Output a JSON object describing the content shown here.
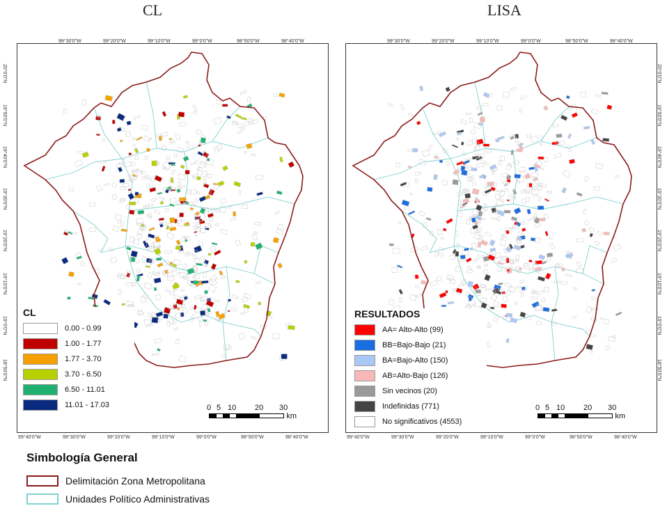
{
  "maps": {
    "cl": {
      "title": "CL",
      "legend_title": "CL",
      "legend": [
        {
          "label": "0.00 - 0.99",
          "color": "#ffffff"
        },
        {
          "label": "1.00 - 1.77",
          "color": "#c00000"
        },
        {
          "label": "1.77 - 3.70",
          "color": "#f5a000"
        },
        {
          "label": "3.70 - 6.50",
          "color": "#b8d000"
        },
        {
          "label": "6.50 - 11.01",
          "color": "#20b070"
        },
        {
          "label": "11.01 - 17.03",
          "color": "#0a2a80"
        }
      ]
    },
    "lisa": {
      "title": "LISA",
      "legend_title": "RESULTADOS",
      "legend": [
        {
          "label": "AA= Alto-Alto (99)",
          "color": "#ff0000"
        },
        {
          "label": "BB=Bajo-Bajo (21)",
          "color": "#1a6fe0"
        },
        {
          "label": "BA=Bajo-Alto (150)",
          "color": "#aac8f5"
        },
        {
          "label": "AB=Alto-Bajo (126)",
          "color": "#f8b8b8"
        },
        {
          "label": "Sin vecinos (20)",
          "color": "#999999"
        },
        {
          "label": "Indefinidas (771)",
          "color": "#444444"
        },
        {
          "label": "No significativos (4553)",
          "color": "#ffffff"
        }
      ]
    }
  },
  "coords": {
    "top": [
      "99°30'0\"W",
      "99°20'0\"W",
      "99°10'0\"W",
      "99°0'0\"W",
      "98°50'0\"W",
      "98°40'0\"W"
    ],
    "bottom": [
      "99°40'0\"W",
      "99°30'0\"W",
      "99°20'0\"W",
      "99°10'0\"W",
      "99°0'0\"W",
      "98°50'0\"W",
      "98°40'0\"W"
    ],
    "side": [
      "20°0'0\"N",
      "19°50'0\"N",
      "19°40'0\"N",
      "19°30'0\"N",
      "19°20'0\"N",
      "19°10'0\"N",
      "19°0'0\"N",
      "18°50'0\"N"
    ]
  },
  "scalebar": {
    "ticks": [
      "0",
      "5",
      "10",
      "20",
      "30"
    ],
    "unit": "km"
  },
  "simbologia": {
    "title": "Simbología General",
    "items": [
      {
        "label": "Delimitación Zona Metropolitana",
        "border": "#8b1a1a"
      },
      {
        "label": "Unidades Político Administrativas",
        "border": "#7fd0d0"
      }
    ]
  },
  "colors": {
    "boundary": "#8b1a1a",
    "municipal": "#7fd0d0",
    "polygons": "#c8c8c8"
  }
}
